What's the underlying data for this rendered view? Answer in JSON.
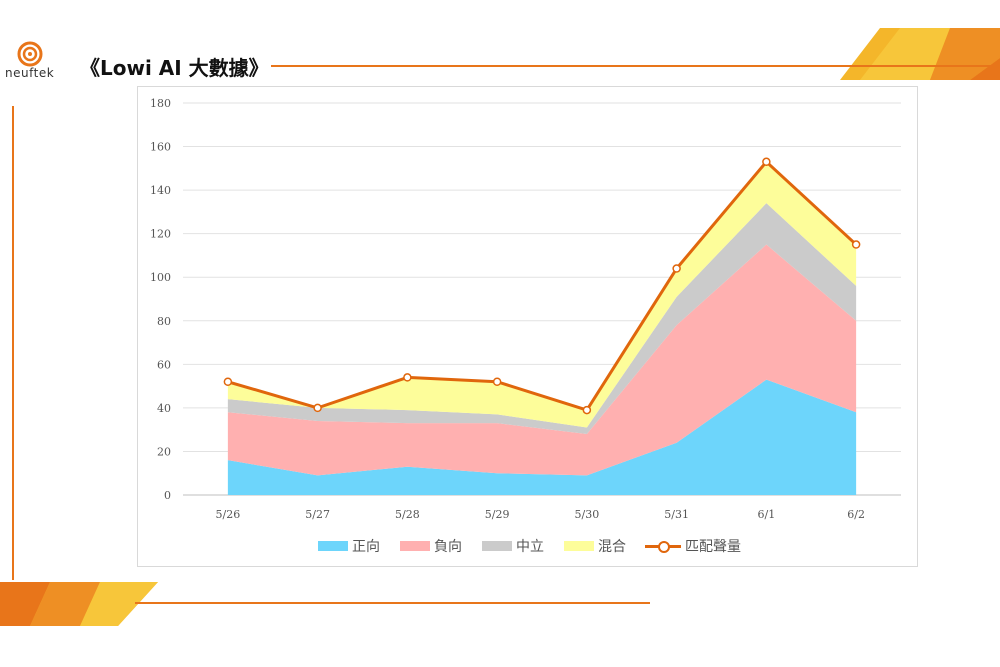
{
  "header": {
    "logo_text": "neuftek",
    "title": "《Lowi AI 大數據》"
  },
  "colors": {
    "accent": "#e8751a",
    "positive": "#6dd5fb",
    "negative": "#ffb0b0",
    "neutral": "#cbcbcb",
    "mixed": "#fdfd9a",
    "volume_line": "#e0660c"
  },
  "chart_data": {
    "type": "area",
    "stacked": true,
    "categories": [
      "5/26",
      "5/27",
      "5/28",
      "5/29",
      "5/30",
      "5/31",
      "6/1",
      "6/2"
    ],
    "series": [
      {
        "name": "正向",
        "type": "area",
        "values": [
          16,
          9,
          13,
          10,
          9,
          24,
          53,
          38
        ]
      },
      {
        "name": "負向",
        "type": "area",
        "values": [
          22,
          25,
          20,
          23,
          19,
          54,
          62,
          42
        ]
      },
      {
        "name": "中立",
        "type": "area",
        "values": [
          6,
          6,
          6,
          4,
          3,
          13,
          19,
          16
        ]
      },
      {
        "name": "混合",
        "type": "area",
        "values": [
          8,
          0,
          15,
          15,
          8,
          13,
          19,
          19
        ]
      },
      {
        "name": "匹配聲量",
        "type": "line",
        "values": [
          52,
          40,
          54,
          52,
          39,
          104,
          153,
          115
        ]
      }
    ],
    "ylim": [
      0,
      180
    ],
    "yticks": [
      0,
      20,
      40,
      60,
      80,
      100,
      120,
      140,
      160,
      180
    ],
    "title": "",
    "xlabel": "",
    "ylabel": "",
    "grid": true,
    "legend": "bottom"
  }
}
